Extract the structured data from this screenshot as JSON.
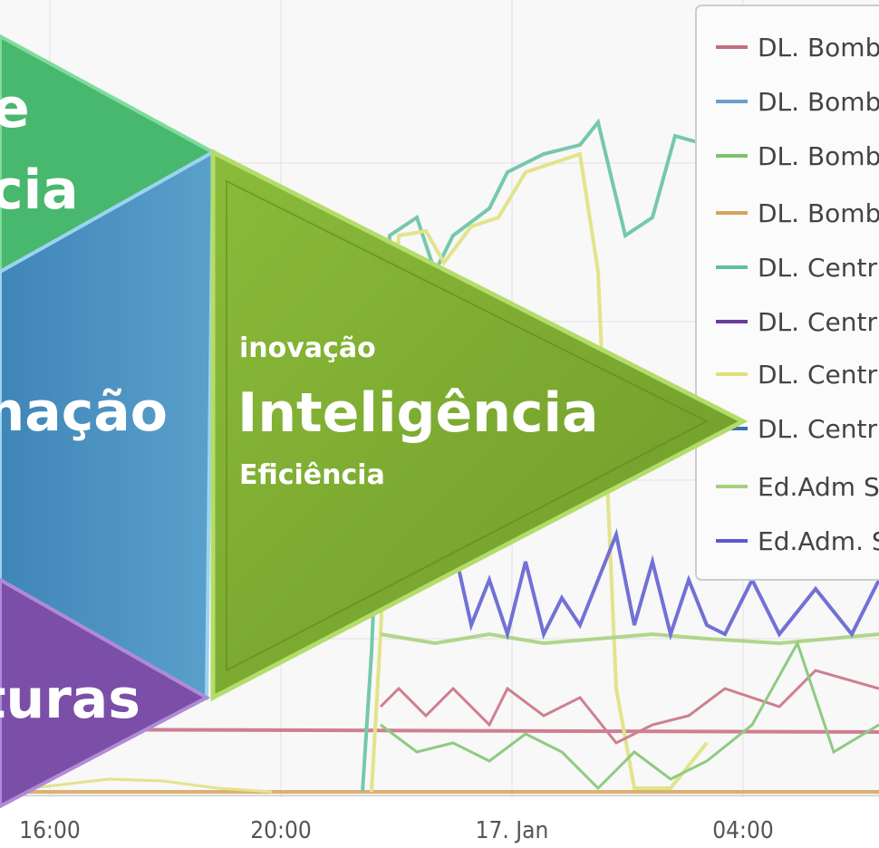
{
  "x_axis": {
    "labels": [
      "16:00",
      "20:00",
      "17. Jan",
      "04:00"
    ]
  },
  "legend": {
    "entries": [
      "DL. Bomba",
      "DL. Bomba",
      "DL. Bomba",
      "DL. Bomba",
      "DL. Centríf",
      "DL. Centríf",
      "DL. Centríf",
      "DL. Centríf",
      "Ed.Adm Sa",
      "Ed.Adm. Sa"
    ]
  },
  "shapes": {
    "top": {
      "lines": [
        "e",
        "cia"
      ]
    },
    "middle": {
      "text": "nação"
    },
    "bottom": {
      "text": "turas"
    },
    "main": {
      "top": "inovação",
      "title": "Inteligência",
      "bottom": "Eficiência"
    }
  }
}
